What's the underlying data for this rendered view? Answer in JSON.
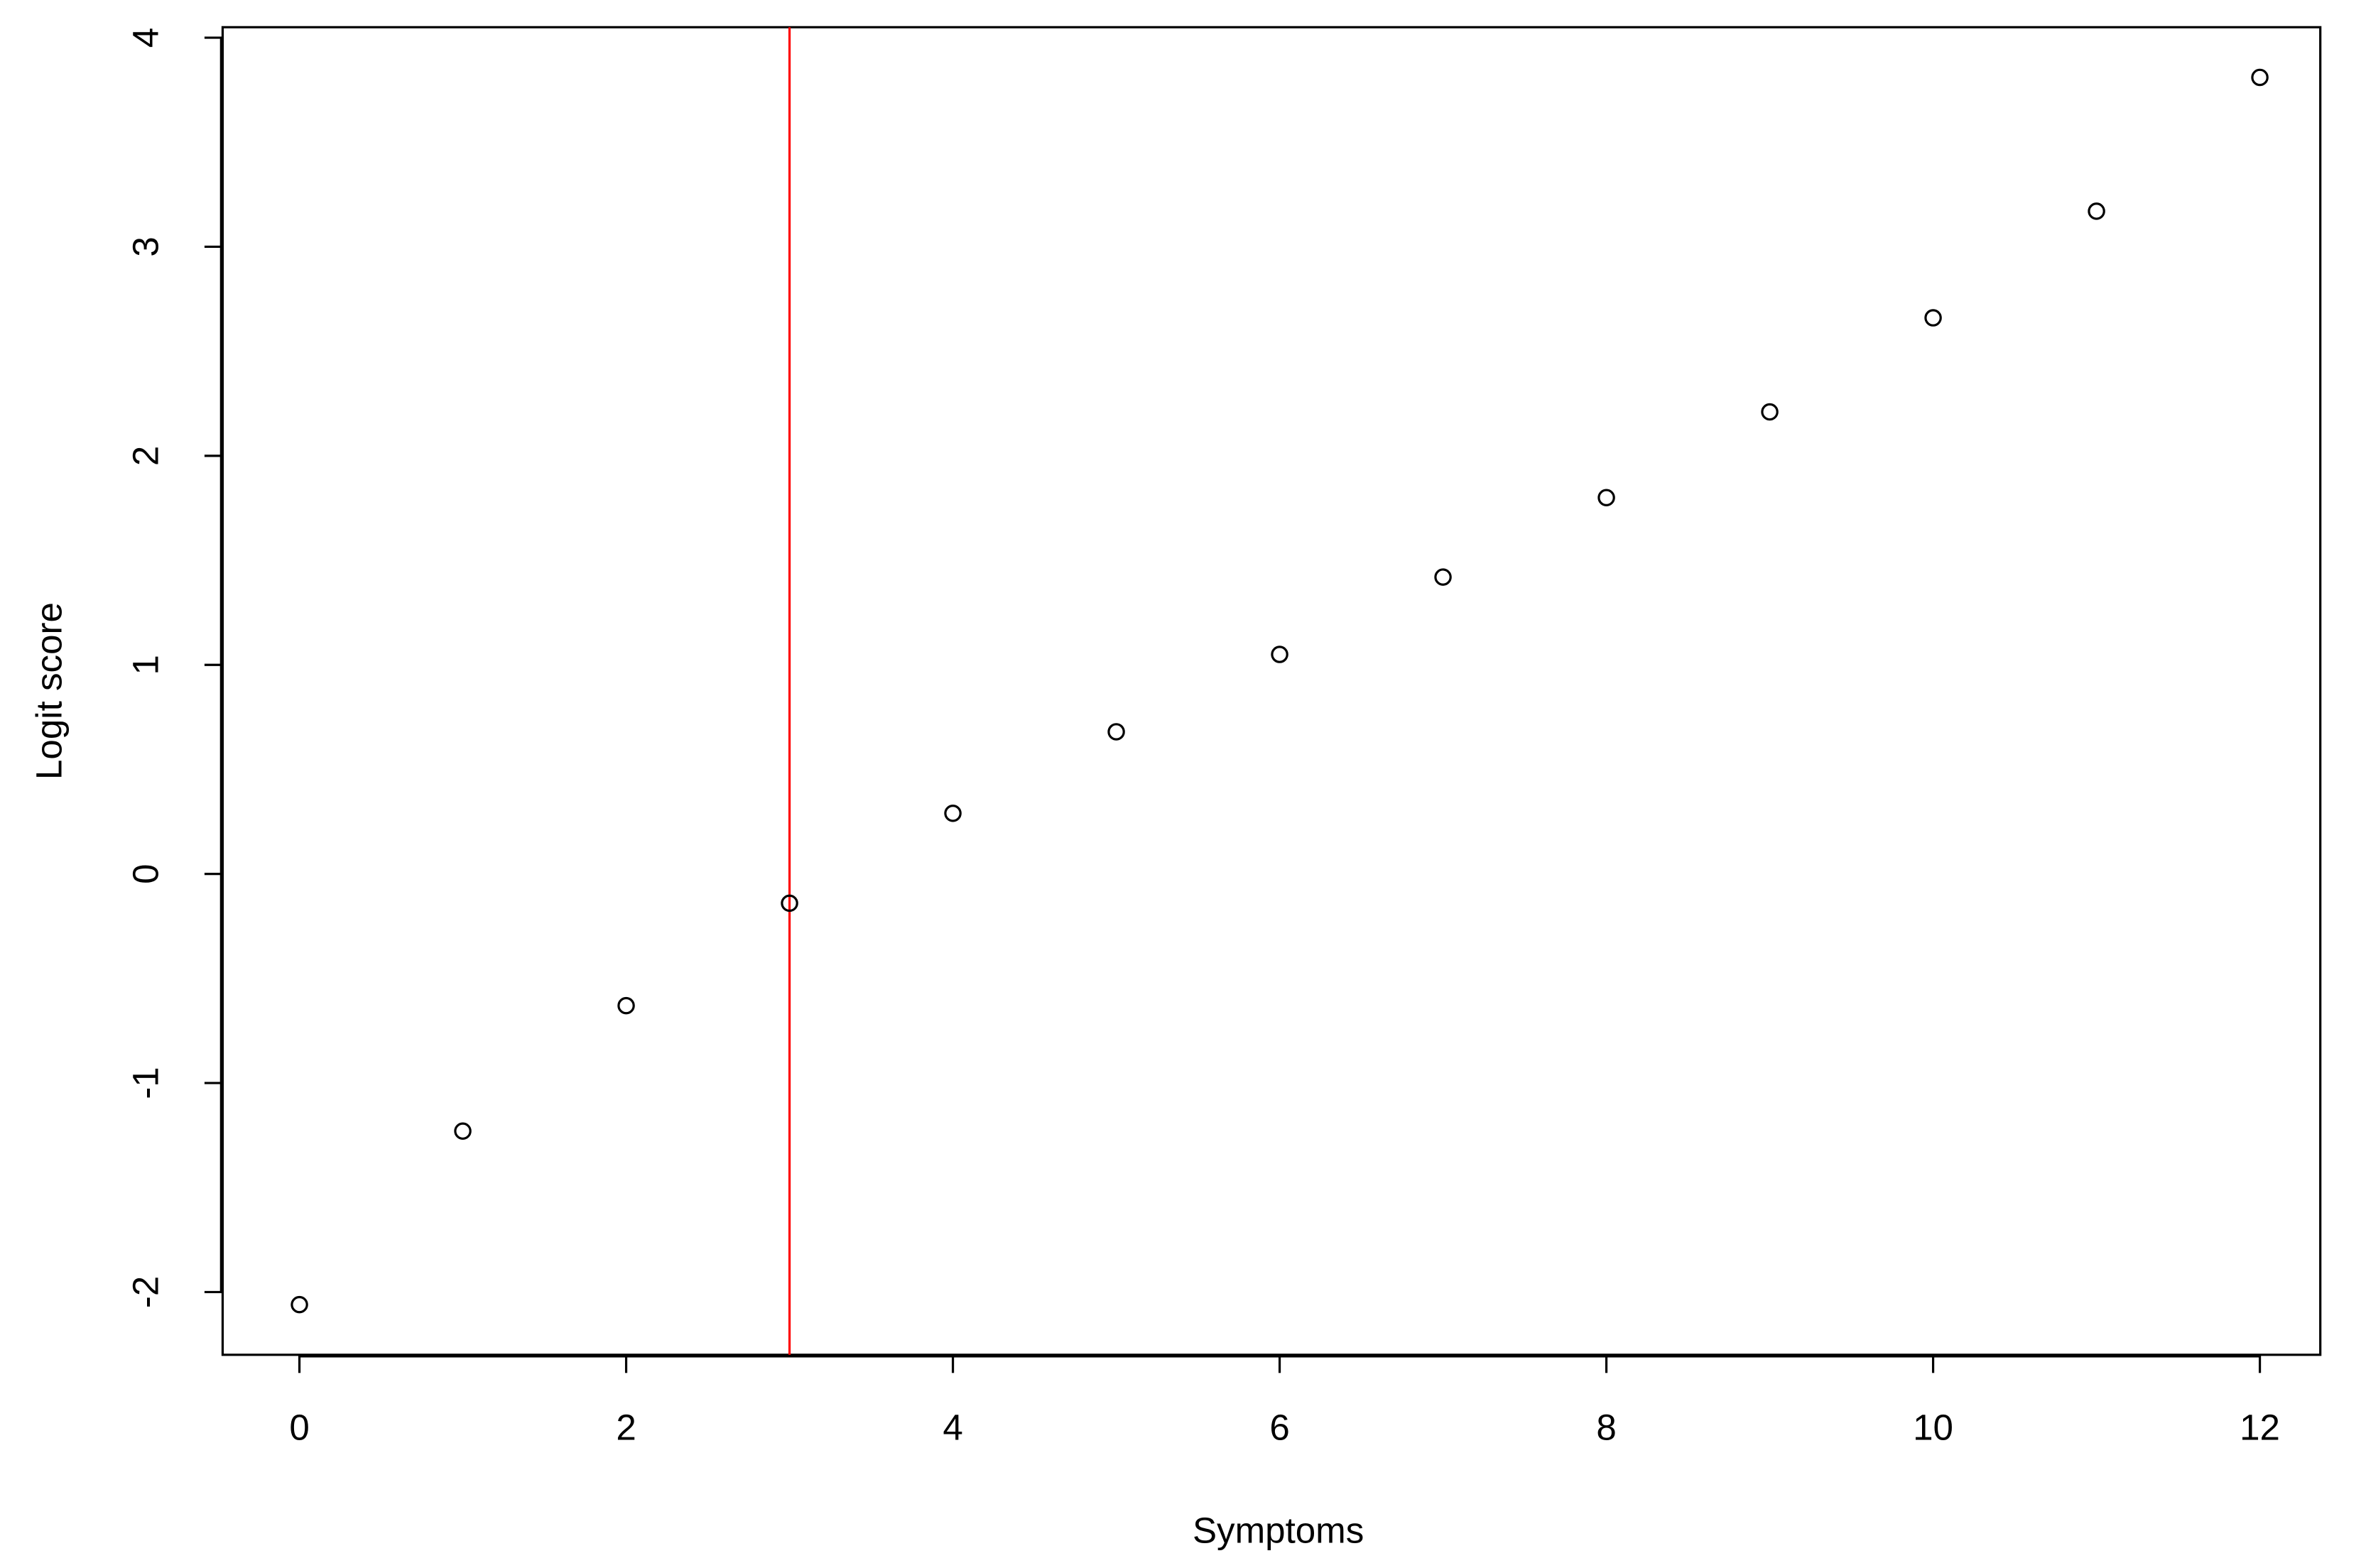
{
  "chart_data": {
    "type": "scatter",
    "x_label": "Symptoms",
    "y_label": "Logit score",
    "x": [
      0,
      1,
      2,
      3,
      4,
      5,
      6,
      7,
      8,
      9,
      10,
      11,
      12
    ],
    "values": [
      -2.06,
      -1.23,
      -0.63,
      -0.14,
      0.29,
      0.68,
      1.05,
      1.42,
      1.8,
      2.21,
      2.66,
      3.17,
      3.81
    ],
    "color": "#000000",
    "xlim": [
      -0.47,
      12.37
    ],
    "ylim": [
      -2.3,
      4.05
    ],
    "xticks": [
      0,
      2,
      4,
      6,
      8,
      10,
      12
    ],
    "yticks": [
      -2,
      -1,
      0,
      1,
      2,
      3,
      4
    ],
    "vline": 3,
    "vline_color": "#ff0000"
  }
}
